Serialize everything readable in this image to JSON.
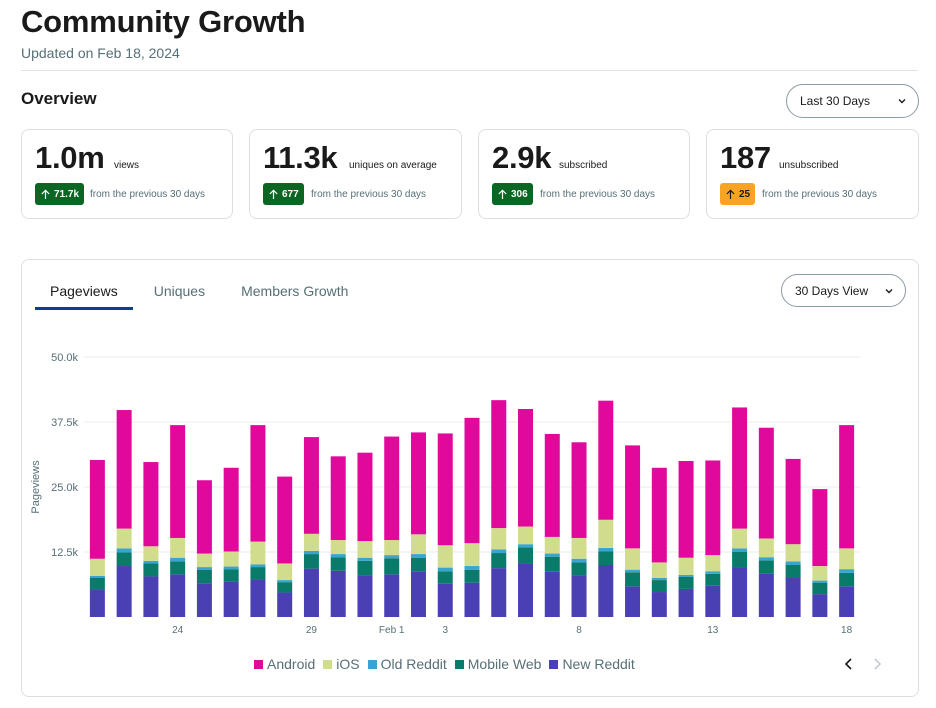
{
  "header": {
    "title": "Community Growth",
    "updated": "Updated on Feb 18, 2024"
  },
  "overview": {
    "title": "Overview",
    "range_label": "Last 30 Days"
  },
  "stats": [
    {
      "value": "1.0m",
      "unit": "views",
      "delta": "71.7k",
      "direction": "up",
      "color": "#0b6623",
      "comparison": "from the previous 30 days"
    },
    {
      "value": "11.3k",
      "unit": "uniques on average",
      "delta": "677",
      "direction": "up",
      "color": "#0b6623",
      "comparison": "from the previous 30 days"
    },
    {
      "value": "2.9k",
      "unit": "subscribed",
      "delta": "306",
      "direction": "up",
      "color": "#0b6623",
      "comparison": "from the previous 30 days"
    },
    {
      "value": "187",
      "unit": "unsubscribed",
      "delta": "25",
      "direction": "up",
      "color": "#f7a425",
      "comparison": "from the previous 30 days"
    }
  ],
  "chart_panel": {
    "tabs": [
      {
        "label": "Pageviews",
        "active": true
      },
      {
        "label": "Uniques",
        "active": false
      },
      {
        "label": "Members Growth",
        "active": false
      }
    ],
    "view_label": "30 Days View",
    "icons": {
      "prev": "chevron-left-icon",
      "next": "chevron-right-icon"
    }
  },
  "chart_data": {
    "type": "bar",
    "stacked": true,
    "ylabel": "Pageviews",
    "ylim": [
      0,
      50000
    ],
    "yticks": [
      12500,
      25000,
      37500,
      50000
    ],
    "ytick_labels": [
      "12.5k",
      "25.0k",
      "37.5k",
      "50.0k"
    ],
    "grid": true,
    "legend_position": "bottom",
    "xtick_labels": [
      {
        "index": 3,
        "label": "24"
      },
      {
        "index": 8,
        "label": "29"
      },
      {
        "index": 11,
        "label": "Feb 1"
      },
      {
        "index": 13,
        "label": "3"
      },
      {
        "index": 18,
        "label": "8"
      },
      {
        "index": 23,
        "label": "13"
      },
      {
        "index": 28,
        "label": "18"
      }
    ],
    "series": [
      {
        "name": "New Reddit",
        "color": "#4a3fb3",
        "values": [
          5300,
          9800,
          7800,
          8200,
          6500,
          6800,
          7200,
          4700,
          9300,
          8900,
          8000,
          8200,
          8800,
          6400,
          6600,
          9400,
          10200,
          8700,
          8000,
          10000,
          5900,
          4800,
          5400,
          6000,
          9600,
          8300,
          7500,
          4400,
          5900
        ]
      },
      {
        "name": "Mobile Web",
        "color": "#0a7b6b",
        "values": [
          2200,
          2600,
          2500,
          2500,
          2600,
          2400,
          2400,
          2000,
          2800,
          2600,
          2800,
          3100,
          2600,
          2400,
          2500,
          2900,
          3200,
          2900,
          2500,
          2600,
          2700,
          2300,
          2300,
          2300,
          2900,
          2600,
          2500,
          2200,
          2600
        ]
      },
      {
        "name": "Old Reddit",
        "color": "#39a4d0",
        "values": [
          400,
          800,
          500,
          700,
          500,
          500,
          500,
          400,
          600,
          600,
          600,
          600,
          700,
          700,
          700,
          700,
          600,
          600,
          700,
          700,
          500,
          400,
          400,
          500,
          700,
          600,
          700,
          400,
          700
        ]
      },
      {
        "name": "iOS",
        "color": "#d1dd8c",
        "values": [
          3300,
          3800,
          2800,
          3800,
          2600,
          2900,
          4400,
          3200,
          3300,
          2700,
          3200,
          2900,
          3800,
          4300,
          4400,
          4100,
          3400,
          3200,
          4000,
          5400,
          4100,
          3000,
          3300,
          3100,
          3800,
          3600,
          3300,
          2800,
          4000
        ]
      },
      {
        "name": "Android",
        "color": "#e0099c",
        "values": [
          19000,
          22800,
          16200,
          21700,
          14100,
          16100,
          22400,
          16700,
          18600,
          16100,
          17000,
          19900,
          19600,
          21500,
          24100,
          24600,
          22600,
          19800,
          18400,
          22900,
          19800,
          18200,
          18600,
          18200,
          23300,
          21300,
          16400,
          14800,
          23700
        ]
      }
    ],
    "legend_order": [
      "Android",
      "iOS",
      "Old Reddit",
      "Mobile Web",
      "New Reddit"
    ]
  }
}
